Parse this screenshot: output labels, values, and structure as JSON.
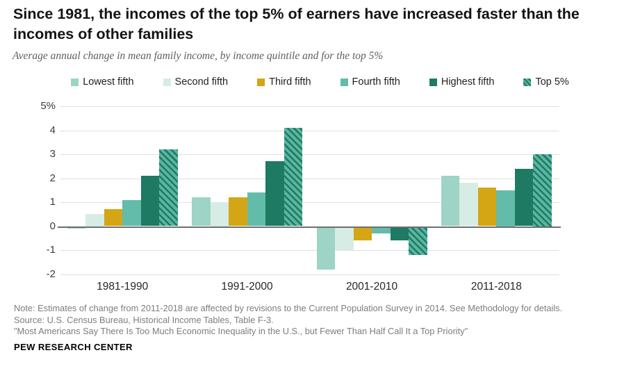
{
  "header": {
    "title": "Since 1981, the incomes of the top 5% of earners have increased faster than the incomes of other families",
    "subtitle": "Average annual change in mean family income, by income quintile and for the top 5%"
  },
  "chart_data": {
    "type": "bar",
    "title": "Since 1981, the incomes of the top 5% of earners have increased faster than the incomes of other families",
    "categories": [
      "1981-1990",
      "1991-2000",
      "2001-2010",
      "2011-2018"
    ],
    "series": [
      {
        "name": "Lowest fifth",
        "color": "#9dd4c5",
        "values": [
          -0.1,
          1.2,
          -1.8,
          2.1
        ]
      },
      {
        "name": "Second fifth",
        "color": "#d7ece4",
        "values": [
          0.5,
          1.0,
          -1.0,
          1.8
        ]
      },
      {
        "name": "Third fifth",
        "color": "#d4a615",
        "values": [
          0.7,
          1.2,
          -0.6,
          1.6
        ]
      },
      {
        "name": "Fourth fifth",
        "color": "#63bcaa",
        "values": [
          1.1,
          1.4,
          -0.3,
          1.5
        ]
      },
      {
        "name": "Highest fifth",
        "color": "#1e7a63",
        "values": [
          2.1,
          2.7,
          -0.6,
          2.4
        ]
      },
      {
        "name": "Top 5%",
        "color": "#5ab5a1",
        "hatch": true,
        "hatch_color": "#1e7a63",
        "values": [
          3.2,
          4.1,
          -1.2,
          3.0
        ]
      }
    ],
    "xlabel": "",
    "ylabel": "",
    "ylim": [
      -2,
      5
    ],
    "ytick_values": [
      5,
      4,
      3,
      2,
      1,
      0,
      -1,
      -2
    ],
    "ytick_labels": [
      "5%",
      "4",
      "3",
      "2",
      "1",
      "0",
      "-1",
      "-2"
    ],
    "grid": "horizontal-dotted",
    "legend_position": "top"
  },
  "footer": {
    "note": "Note: Estimates of change from 2011-2018 are affected by revisions to the Current Population Survey in 2014. See Methodology for details.",
    "source": "Source: U.S. Census Bureau, Historical Income Tables, Table F-3.",
    "report_title": "\"Most Americans Say There Is Too Much Economic Inequality in the U.S., but Fewer Than Half Call It a Top Priority\"",
    "brand": "PEW RESEARCH CENTER"
  }
}
